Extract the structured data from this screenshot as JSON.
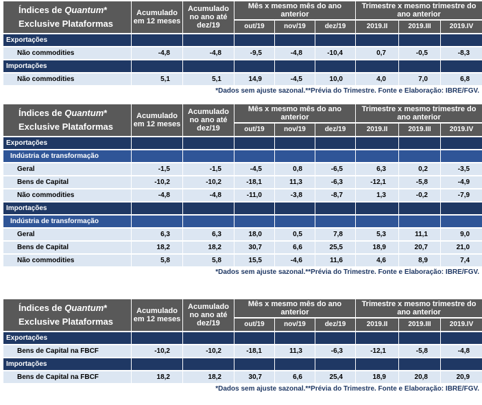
{
  "tables": [
    {
      "header": {
        "title_pre": "Índices de ",
        "title_em": "Quantum",
        "title_post": "*",
        "title_line2": "Exclusive Plataformas",
        "col1": "Acumulado em 12 meses",
        "col2": "Acumulado no ano até dez/19",
        "group1": "Mês x mesmo mês do ano anterior",
        "group2": "Trimestre x mesmo trimestre do ano anterior",
        "subcols": [
          "out/19",
          "nov/19",
          "dez/19",
          "2019.II",
          "2019.III",
          "2019.IV"
        ]
      },
      "rows": [
        {
          "kind": "section",
          "label": "Exportações"
        },
        {
          "kind": "data",
          "label": "Não commodities",
          "values": [
            "-4,8",
            "-4,8",
            "-9,5",
            "-4,8",
            "-10,4",
            "0,7",
            "-0,5",
            "-8,3"
          ]
        },
        {
          "kind": "section",
          "label": "Importações"
        },
        {
          "kind": "data",
          "label": "Não commodities",
          "values": [
            "5,1",
            "5,1",
            "14,9",
            "-4,5",
            "10,0",
            "4,0",
            "7,0",
            "6,8"
          ]
        }
      ],
      "note": "*Dados sem ajuste sazonal.**Prévia do Trimestre. Fonte e Elaboração: IBRE/FGV."
    },
    {
      "header": {
        "title_pre": "Índices de ",
        "title_em": "Quantum",
        "title_post": "*",
        "title_line2": "Exclusive Plataformas",
        "col1": "Acumulado em 12 meses",
        "col2": "Acumulado no ano até dez/19",
        "group1": "Mês x mesmo mês do ano anterior",
        "group2": "Trimestre x mesmo trimestre do ano anterior",
        "subcols": [
          "out/19",
          "nov/19",
          "dez/19",
          "2019.II",
          "2019.III",
          "2019.IV"
        ]
      },
      "rows": [
        {
          "kind": "section",
          "label": "Exportações"
        },
        {
          "kind": "subsection",
          "label": "Indústria de transformação"
        },
        {
          "kind": "data",
          "label": "Geral",
          "values": [
            "-1,5",
            "-1,5",
            "-4,5",
            "0,8",
            "-6,5",
            "6,3",
            "0,2",
            "-3,5"
          ]
        },
        {
          "kind": "data",
          "label": "Bens de Capital",
          "values": [
            "-10,2",
            "-10,2",
            "-18,1",
            "11,3",
            "-6,3",
            "-12,1",
            "-5,8",
            "-4,9"
          ]
        },
        {
          "kind": "data",
          "label": "Não commodities",
          "values": [
            "-4,8",
            "-4,8",
            "-11,0",
            "-3,8",
            "-8,7",
            "1,3",
            "-0,2",
            "-7,9"
          ]
        },
        {
          "kind": "section",
          "label": "Importações"
        },
        {
          "kind": "subsection",
          "label": "Indústria de transformação"
        },
        {
          "kind": "data",
          "label": "Geral",
          "values": [
            "6,3",
            "6,3",
            "18,0",
            "0,5",
            "7,8",
            "5,3",
            "11,1",
            "9,0"
          ]
        },
        {
          "kind": "data",
          "label": "Bens de Capital",
          "values": [
            "18,2",
            "18,2",
            "30,7",
            "6,6",
            "25,5",
            "18,9",
            "20,7",
            "21,0"
          ]
        },
        {
          "kind": "data",
          "label": "Não commodities",
          "values": [
            "5,8",
            "5,8",
            "15,5",
            "-4,6",
            "11,6",
            "4,6",
            "8,9",
            "7,4"
          ]
        }
      ],
      "note": "*Dados sem ajuste sazonal.**Prévia do Trimestre. Fonte e Elaboração: IBRE/FGV."
    },
    {
      "header": {
        "title_pre": "Índices de ",
        "title_em": "Quantum",
        "title_post": "*",
        "title_line2": "Exclusive Plataformas",
        "col1": "Acumulado em 12 meses",
        "col2": "Acumulado no ano até dez/19",
        "group1": "Mês x mesmo mês do ano anterior",
        "group2": "Trimestre x mesmo trimestre do ano anterior",
        "subcols": [
          "out/19",
          "nov/19",
          "dez/19",
          "2019.II",
          "2019.III",
          "2019.IV"
        ]
      },
      "rows": [
        {
          "kind": "section",
          "label": "Exportações"
        },
        {
          "kind": "data",
          "label": "Bens de Capital na FBCF",
          "values": [
            "-10,2",
            "-10,2",
            "-18,1",
            "11,3",
            "-6,3",
            "-12,1",
            "-5,8",
            "-4,8"
          ]
        },
        {
          "kind": "section",
          "label": "Importações"
        },
        {
          "kind": "data",
          "label": "Bens de Capital na FBCF",
          "values": [
            "18,2",
            "18,2",
            "30,7",
            "6,6",
            "25,4",
            "18,9",
            "20,8",
            "20,9"
          ]
        }
      ],
      "note": "*Dados sem ajuste sazonal.**Prévia do Trimestre. Fonte e Elaboração: IBRE/FGV."
    }
  ]
}
